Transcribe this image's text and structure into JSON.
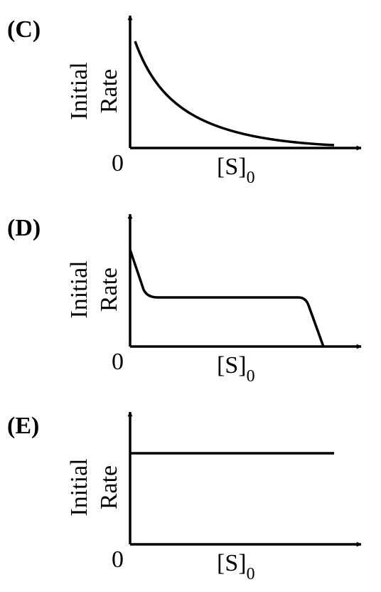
{
  "panels": [
    {
      "label": "(C)",
      "y_label_lines": [
        "Initial",
        "Rate"
      ],
      "origin": "0",
      "x_label": "[S]",
      "x_label_subscript": "0"
    },
    {
      "label": "(D)",
      "y_label_lines": [
        "Initial",
        "Rate"
      ],
      "origin": "0",
      "x_label": "[S]",
      "x_label_subscript": "0"
    },
    {
      "label": "(E)",
      "y_label_lines": [
        "Initial",
        "Rate"
      ],
      "origin": "0",
      "x_label": "[S]",
      "x_label_subscript": "0"
    }
  ]
}
